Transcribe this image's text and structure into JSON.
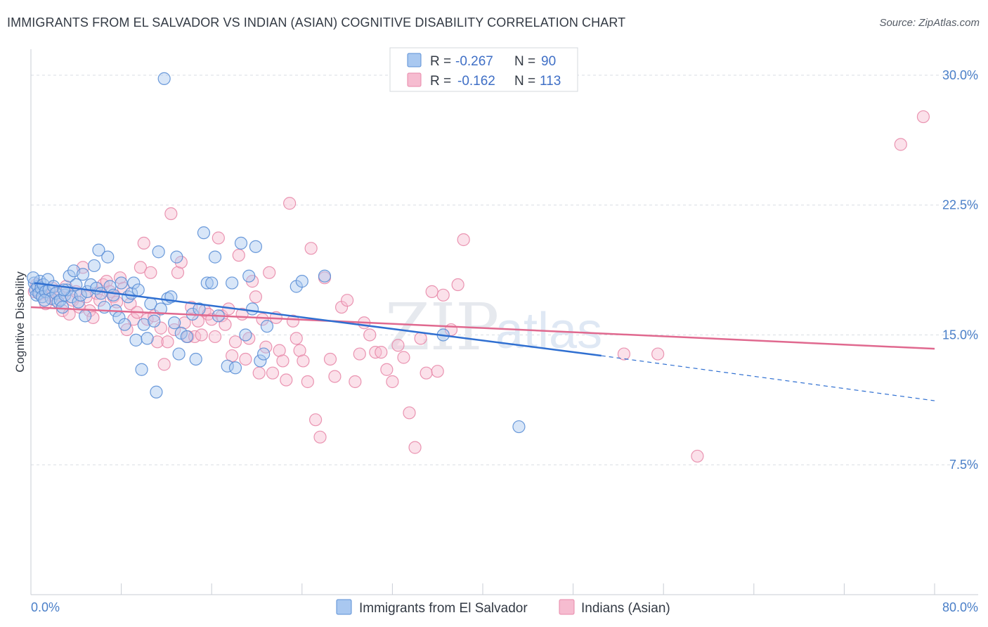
{
  "title": "IMMIGRANTS FROM EL SALVADOR VS INDIAN (ASIAN) COGNITIVE DISABILITY CORRELATION CHART",
  "source": "Source: ZipAtlas.com",
  "watermark": {
    "zip": "ZIP",
    "atlas": "atlas"
  },
  "colors": {
    "blue_fill": "#a9c8f0",
    "blue_stroke": "#5b8fd6",
    "blue_line": "#2f6fd1",
    "pink_fill": "#f6bcd0",
    "pink_stroke": "#e889aa",
    "pink_line": "#e0698f",
    "tick_text": "#4a7fc8",
    "grid": "#d9dde3"
  },
  "legend": {
    "rows": [
      {
        "r_label": "R = ",
        "r_value": "-0.267",
        "n_label": "N = ",
        "n_value": "90"
      },
      {
        "r_label": "R = ",
        "r_value": "-0.162",
        "n_label": "N = ",
        "n_value": "113"
      }
    ]
  },
  "chart_data": {
    "type": "scatter",
    "title": "IMMIGRANTS FROM EL SALVADOR VS INDIAN (ASIAN) COGNITIVE DISABILITY CORRELATION CHART",
    "xlabel": "",
    "ylabel": "Cognitive Disability",
    "xlim": [
      0,
      80
    ],
    "ylim": [
      0,
      31.5
    ],
    "x_tick_labels": [
      "0.0%",
      "80.0%"
    ],
    "y_ticks": [
      7.5,
      15.0,
      22.5,
      30.0
    ],
    "y_tick_labels": [
      "7.5%",
      "15.0%",
      "22.5%",
      "30.0%"
    ],
    "grid": "horizontal dashed",
    "legend_position": "top-center",
    "series": [
      {
        "name": "Immigrants from El Salvador",
        "r": -0.267,
        "n": 90,
        "trend": {
          "x": [
            0.3,
            50.5
          ],
          "y": [
            18.0,
            13.8
          ],
          "dashed_extension": {
            "x": [
              50.5,
              80.0
            ],
            "y": [
              13.8,
              11.2
            ]
          }
        },
        "points": [
          [
            0.3,
            18.0
          ],
          [
            0.4,
            17.6
          ],
          [
            0.5,
            17.3
          ],
          [
            0.6,
            17.8
          ],
          [
            0.7,
            17.4
          ],
          [
            0.8,
            18.1
          ],
          [
            0.9,
            17.7
          ],
          [
            1.0,
            17.2
          ],
          [
            1.1,
            17.9
          ],
          [
            1.3,
            17.5
          ],
          [
            1.5,
            18.2
          ],
          [
            1.6,
            17.6
          ],
          [
            1.8,
            17.1
          ],
          [
            2.0,
            17.8
          ],
          [
            2.2,
            17.4
          ],
          [
            2.4,
            16.9
          ],
          [
            2.6,
            17.0
          ],
          [
            2.8,
            16.6
          ],
          [
            3.0,
            17.3
          ],
          [
            3.2,
            17.6
          ],
          [
            3.4,
            18.4
          ],
          [
            3.6,
            17.2
          ],
          [
            3.8,
            18.7
          ],
          [
            4.0,
            17.9
          ],
          [
            4.2,
            16.9
          ],
          [
            4.4,
            17.3
          ],
          [
            4.6,
            18.5
          ],
          [
            4.8,
            16.1
          ],
          [
            5.0,
            17.5
          ],
          [
            5.3,
            17.9
          ],
          [
            5.6,
            19.0
          ],
          [
            5.8,
            17.7
          ],
          [
            6.0,
            19.9
          ],
          [
            6.2,
            17.4
          ],
          [
            6.5,
            16.6
          ],
          [
            6.8,
            19.5
          ],
          [
            7.0,
            17.8
          ],
          [
            7.3,
            17.3
          ],
          [
            7.5,
            16.4
          ],
          [
            7.8,
            16.0
          ],
          [
            8.0,
            18.0
          ],
          [
            8.3,
            15.6
          ],
          [
            8.6,
            17.2
          ],
          [
            8.9,
            17.4
          ],
          [
            9.1,
            18.0
          ],
          [
            9.3,
            14.7
          ],
          [
            9.5,
            17.6
          ],
          [
            9.8,
            13.0
          ],
          [
            10.0,
            15.6
          ],
          [
            10.3,
            14.8
          ],
          [
            10.6,
            16.8
          ],
          [
            10.9,
            15.8
          ],
          [
            11.1,
            11.7
          ],
          [
            11.3,
            19.8
          ],
          [
            11.5,
            16.5
          ],
          [
            11.8,
            29.8
          ],
          [
            12.1,
            17.1
          ],
          [
            12.4,
            17.2
          ],
          [
            12.7,
            15.7
          ],
          [
            12.9,
            19.5
          ],
          [
            13.1,
            13.9
          ],
          [
            13.3,
            15.1
          ],
          [
            13.8,
            14.9
          ],
          [
            14.3,
            16.2
          ],
          [
            14.6,
            13.6
          ],
          [
            14.9,
            16.5
          ],
          [
            15.3,
            20.9
          ],
          [
            15.6,
            18.0
          ],
          [
            16.0,
            18.0
          ],
          [
            16.3,
            19.5
          ],
          [
            16.6,
            16.1
          ],
          [
            17.4,
            13.2
          ],
          [
            17.8,
            18.0
          ],
          [
            18.1,
            13.1
          ],
          [
            18.6,
            20.3
          ],
          [
            19.0,
            15.0
          ],
          [
            19.3,
            18.4
          ],
          [
            19.6,
            16.5
          ],
          [
            19.9,
            20.1
          ],
          [
            20.3,
            13.5
          ],
          [
            20.6,
            13.9
          ],
          [
            20.9,
            15.5
          ],
          [
            23.5,
            17.8
          ],
          [
            24.0,
            18.1
          ],
          [
            26.0,
            18.4
          ],
          [
            36.5,
            15.0
          ],
          [
            43.2,
            9.7
          ],
          [
            0.2,
            18.3
          ],
          [
            1.2,
            17.0
          ],
          [
            2.9,
            17.6
          ]
        ]
      },
      {
        "name": "Indians (Asian)",
        "r": -0.162,
        "n": 113,
        "trend": {
          "x": [
            0.0,
            80.0
          ],
          "y": [
            16.6,
            14.2
          ]
        },
        "points": [
          [
            0.3,
            17.5
          ],
          [
            0.5,
            17.9
          ],
          [
            0.8,
            17.4
          ],
          [
            1.0,
            17.6
          ],
          [
            1.3,
            16.8
          ],
          [
            1.6,
            17.3
          ],
          [
            1.9,
            17.7
          ],
          [
            2.2,
            17.0
          ],
          [
            2.5,
            17.3
          ],
          [
            2.8,
            16.4
          ],
          [
            3.1,
            17.8
          ],
          [
            3.4,
            16.2
          ],
          [
            3.7,
            17.0
          ],
          [
            4.0,
            17.5
          ],
          [
            4.3,
            16.6
          ],
          [
            4.6,
            18.9
          ],
          [
            4.9,
            17.2
          ],
          [
            5.2,
            16.4
          ],
          [
            5.5,
            16.0
          ],
          [
            5.8,
            17.4
          ],
          [
            6.1,
            17.0
          ],
          [
            6.4,
            17.9
          ],
          [
            6.7,
            18.1
          ],
          [
            7.0,
            17.5
          ],
          [
            7.3,
            17.2
          ],
          [
            7.6,
            16.9
          ],
          [
            7.9,
            18.3
          ],
          [
            8.2,
            17.7
          ],
          [
            8.5,
            15.3
          ],
          [
            8.8,
            16.8
          ],
          [
            9.1,
            15.9
          ],
          [
            9.4,
            16.3
          ],
          [
            9.7,
            18.9
          ],
          [
            10.0,
            20.3
          ],
          [
            10.3,
            15.9
          ],
          [
            10.6,
            18.6
          ],
          [
            10.9,
            16.1
          ],
          [
            11.2,
            14.6
          ],
          [
            11.5,
            15.4
          ],
          [
            11.8,
            13.3
          ],
          [
            12.1,
            14.6
          ],
          [
            12.4,
            22.0
          ],
          [
            12.7,
            15.3
          ],
          [
            13.0,
            18.6
          ],
          [
            13.3,
            19.2
          ],
          [
            13.6,
            15.7
          ],
          [
            13.9,
            14.9
          ],
          [
            14.2,
            16.6
          ],
          [
            14.5,
            14.9
          ],
          [
            14.8,
            15.8
          ],
          [
            15.1,
            15.0
          ],
          [
            15.4,
            16.4
          ],
          [
            15.7,
            16.2
          ],
          [
            16.0,
            15.9
          ],
          [
            16.3,
            14.9
          ],
          [
            16.6,
            20.6
          ],
          [
            16.9,
            16.1
          ],
          [
            17.2,
            15.6
          ],
          [
            17.5,
            16.5
          ],
          [
            17.8,
            13.8
          ],
          [
            18.1,
            14.6
          ],
          [
            18.4,
            19.6
          ],
          [
            18.7,
            16.2
          ],
          [
            19.0,
            13.6
          ],
          [
            19.3,
            14.8
          ],
          [
            19.6,
            18.1
          ],
          [
            19.9,
            17.2
          ],
          [
            20.2,
            12.8
          ],
          [
            20.5,
            15.9
          ],
          [
            20.8,
            14.3
          ],
          [
            21.1,
            18.6
          ],
          [
            21.4,
            12.8
          ],
          [
            21.7,
            16.0
          ],
          [
            22.0,
            14.1
          ],
          [
            22.3,
            13.5
          ],
          [
            22.6,
            12.4
          ],
          [
            22.9,
            22.6
          ],
          [
            23.2,
            15.8
          ],
          [
            23.5,
            14.8
          ],
          [
            23.8,
            14.1
          ],
          [
            24.1,
            13.5
          ],
          [
            24.5,
            12.3
          ],
          [
            24.8,
            20.0
          ],
          [
            25.2,
            10.1
          ],
          [
            25.6,
            9.1
          ],
          [
            26.0,
            18.3
          ],
          [
            26.5,
            13.6
          ],
          [
            26.9,
            12.6
          ],
          [
            27.5,
            16.6
          ],
          [
            28.0,
            17.0
          ],
          [
            28.7,
            12.3
          ],
          [
            29.1,
            13.9
          ],
          [
            29.5,
            15.7
          ],
          [
            30.0,
            15.0
          ],
          [
            30.5,
            14.0
          ],
          [
            31.0,
            14.0
          ],
          [
            31.5,
            13.0
          ],
          [
            32.0,
            12.3
          ],
          [
            32.5,
            14.4
          ],
          [
            33.0,
            13.7
          ],
          [
            33.5,
            10.5
          ],
          [
            34.0,
            8.5
          ],
          [
            34.5,
            14.8
          ],
          [
            35.0,
            12.8
          ],
          [
            35.5,
            17.5
          ],
          [
            36.0,
            12.9
          ],
          [
            36.5,
            17.3
          ],
          [
            37.2,
            15.3
          ],
          [
            37.8,
            17.9
          ],
          [
            38.3,
            20.5
          ],
          [
            52.5,
            13.9
          ],
          [
            55.5,
            13.9
          ],
          [
            59.0,
            8.0
          ],
          [
            77.0,
            26.0
          ],
          [
            79.0,
            27.6
          ]
        ]
      }
    ]
  },
  "bottom_legend": [
    {
      "label": "Immigrants from El Salvador"
    },
    {
      "label": "Indians (Asian)"
    }
  ]
}
